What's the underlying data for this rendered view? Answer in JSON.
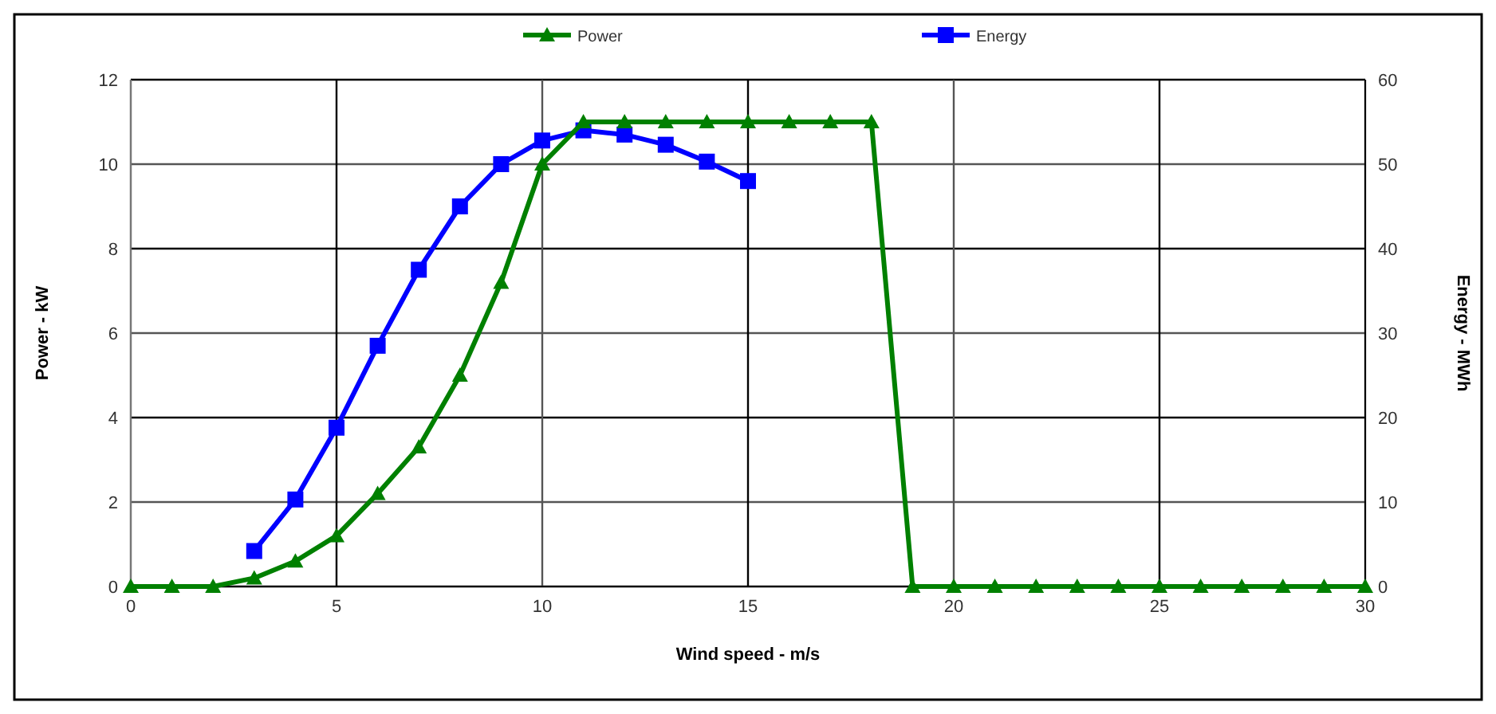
{
  "chart_data": {
    "type": "line",
    "xlabel": "Wind speed - m/s",
    "ylabel": "Power - kW",
    "y2label": "Energy - MWh",
    "xlim": [
      0,
      30
    ],
    "xticks": [
      0,
      5,
      10,
      15,
      20,
      25,
      30
    ],
    "ylim": [
      0,
      12
    ],
    "yticks": [
      0,
      2,
      4,
      6,
      8,
      10,
      12
    ],
    "y2lim": [
      0,
      60
    ],
    "y2ticks": [
      0,
      10,
      20,
      30,
      40,
      50,
      60
    ],
    "grid": true,
    "legend": "top",
    "line_style": "solid",
    "series": [
      {
        "name": "Power",
        "color": "#008000",
        "marker": "triangle",
        "x": [
          0,
          1,
          2,
          3,
          4,
          5,
          6,
          7,
          8,
          9,
          10,
          11,
          12,
          13,
          14,
          15,
          16,
          17,
          18,
          19,
          20,
          21,
          22,
          23,
          24,
          25,
          26,
          27,
          28,
          29,
          30
        ],
        "values": [
          0,
          0,
          0,
          0.2,
          0.6,
          1.2,
          2.2,
          3.3,
          5.0,
          7.2,
          10,
          11,
          11,
          11,
          11,
          11,
          11,
          11,
          11,
          0,
          0,
          0,
          0,
          0,
          0,
          0,
          0,
          0,
          0,
          0,
          0
        ]
      },
      {
        "name": "Energy",
        "color": "#0000ff",
        "marker": "square",
        "axis": "y2",
        "x": [
          3,
          4,
          5,
          6,
          7,
          8,
          9,
          10,
          11,
          12,
          13,
          14,
          15
        ],
        "values": [
          4.2,
          10.3,
          18.8,
          28.5,
          37.5,
          45,
          50,
          52.8,
          54,
          53.5,
          52.3,
          50.3,
          48
        ]
      }
    ]
  }
}
